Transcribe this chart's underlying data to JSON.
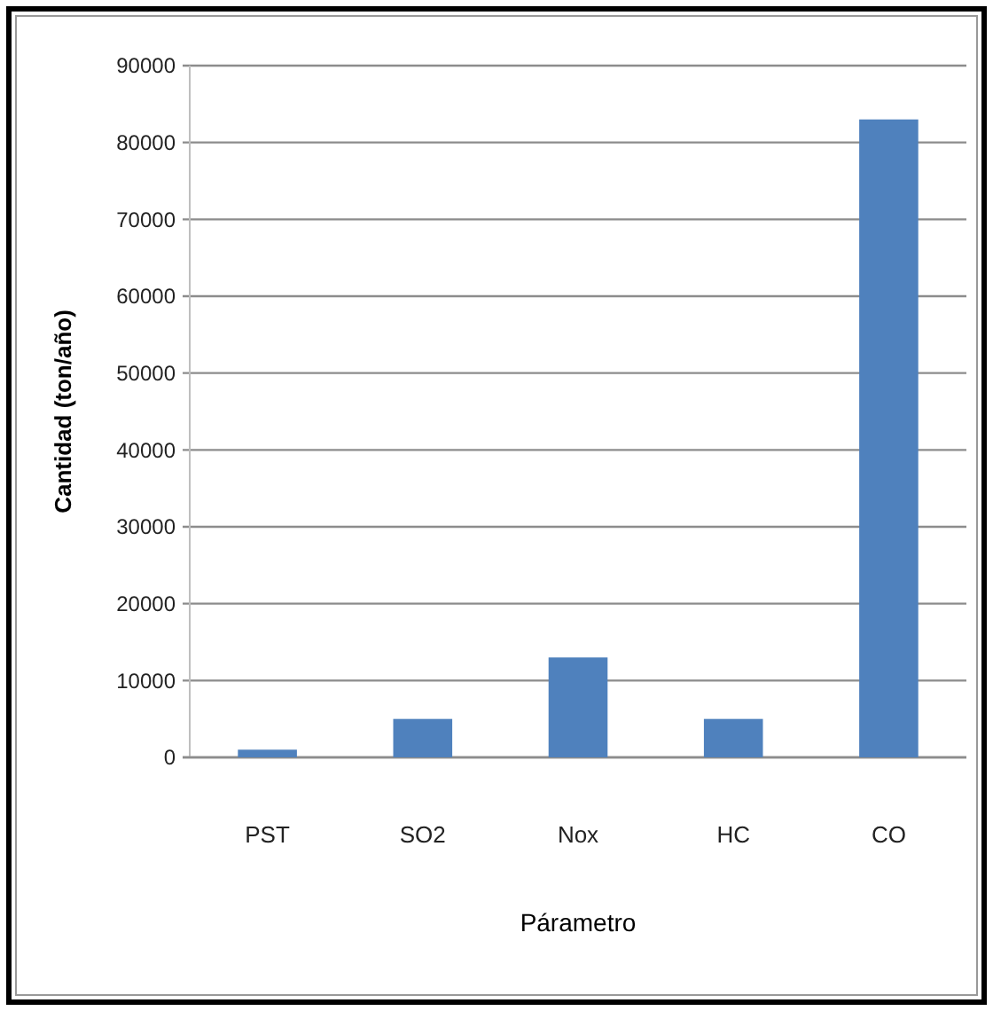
{
  "chart_data": {
    "type": "bar",
    "xlabel": "Párametro",
    "ylabel": "Cantidad (ton/año)",
    "categories": [
      "PST",
      "SO2",
      "Nox",
      "HC",
      "CO"
    ],
    "values": [
      1000,
      5000,
      13000,
      5000,
      83000
    ],
    "color": "#4f81bd",
    "ylim": [
      0,
      90000
    ],
    "yticks": [
      0,
      10000,
      20000,
      30000,
      40000,
      50000,
      60000,
      70000,
      80000,
      90000
    ],
    "grid": "y"
  }
}
